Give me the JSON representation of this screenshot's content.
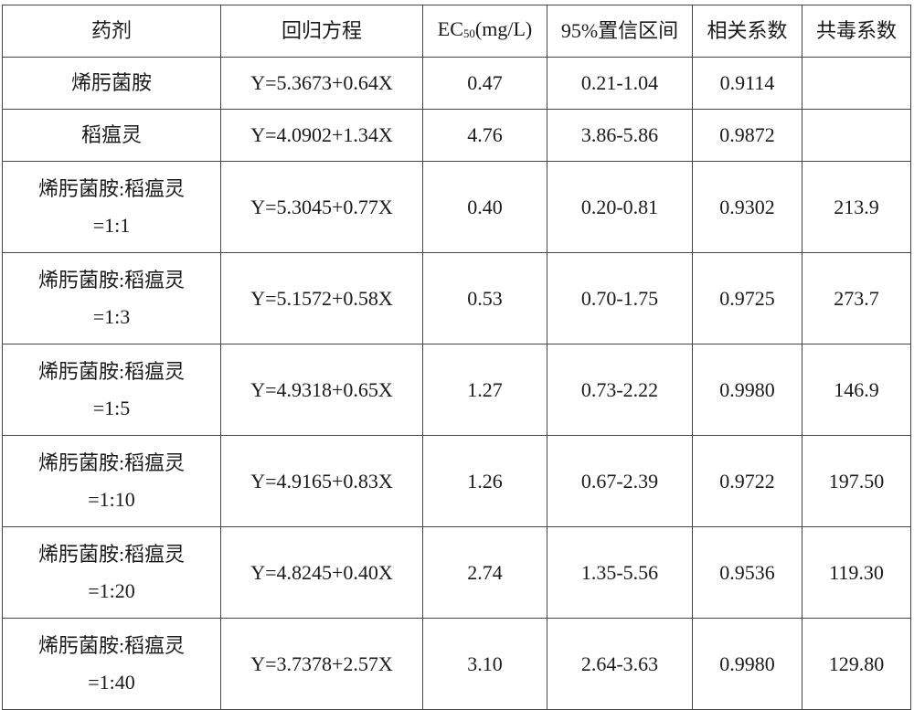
{
  "table": {
    "headers": {
      "agent": "药剂",
      "equation": "回归方程",
      "ec50_prefix": "EC",
      "ec50_sub": "50",
      "ec50_suffix": "(mg/L)",
      "ci": "95%置信区间",
      "r": "相关系数",
      "ctc": "共毒系数"
    },
    "rows": [
      {
        "agent_line1": "烯肟菌胺",
        "agent_line2": "",
        "equation": "Y=5.3673+0.64X",
        "ec50": "0.47",
        "ci": "0.21-1.04",
        "r": "0.9114",
        "ctc": ""
      },
      {
        "agent_line1": "稻瘟灵",
        "agent_line2": "",
        "equation": "Y=4.0902+1.34X",
        "ec50": "4.76",
        "ci": "3.86-5.86",
        "r": "0.9872",
        "ctc": ""
      },
      {
        "agent_line1": "烯肟菌胺:稻瘟灵",
        "agent_line2": "=1:1",
        "equation": "Y=5.3045+0.77X",
        "ec50": "0.40",
        "ci": "0.20-0.81",
        "r": "0.9302",
        "ctc": "213.9"
      },
      {
        "agent_line1": "烯肟菌胺:稻瘟灵",
        "agent_line2": "=1:3",
        "equation": "Y=5.1572+0.58X",
        "ec50": "0.53",
        "ci": "0.70-1.75",
        "r": "0.9725",
        "ctc": "273.7"
      },
      {
        "agent_line1": "烯肟菌胺:稻瘟灵",
        "agent_line2": "=1:5",
        "equation": "Y=4.9318+0.65X",
        "ec50": "1.27",
        "ci": "0.73-2.22",
        "r": "0.9980",
        "ctc": "146.9"
      },
      {
        "agent_line1": "烯肟菌胺:稻瘟灵",
        "agent_line2": "=1:10",
        "equation": "Y=4.9165+0.83X",
        "ec50": "1.26",
        "ci": "0.67-2.39",
        "r": "0.9722",
        "ctc": "197.50"
      },
      {
        "agent_line1": "烯肟菌胺:稻瘟灵",
        "agent_line2": "=1:20",
        "equation": "Y=4.8245+0.40X",
        "ec50": "2.74",
        "ci": "1.35-5.56",
        "r": "0.9536",
        "ctc": "119.30"
      },
      {
        "agent_line1": "烯肟菌胺:稻瘟灵",
        "agent_line2": "=1:40",
        "equation": "Y=3.7378+2.57X",
        "ec50": "3.10",
        "ci": "2.64-3.63",
        "r": "0.9980",
        "ctc": "129.80"
      }
    ]
  }
}
